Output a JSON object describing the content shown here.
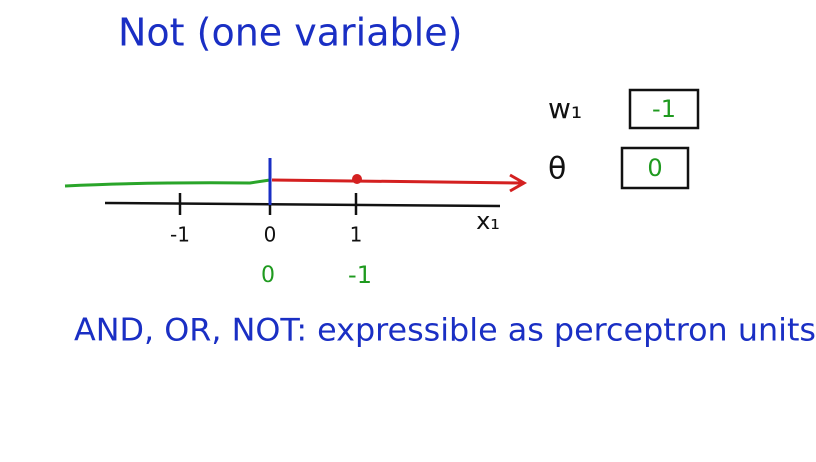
{
  "title": "Not (one variable)",
  "params": {
    "w_label": "w₁",
    "w_value": "-1",
    "theta_label": "θ",
    "theta_value": "0"
  },
  "axis": {
    "ticks": [
      "-1",
      "0",
      "1"
    ],
    "label": "x₁"
  },
  "outputs": [
    "0",
    "-1"
  ],
  "statement": "AND, OR, NOT: expressible as perceptron units"
}
